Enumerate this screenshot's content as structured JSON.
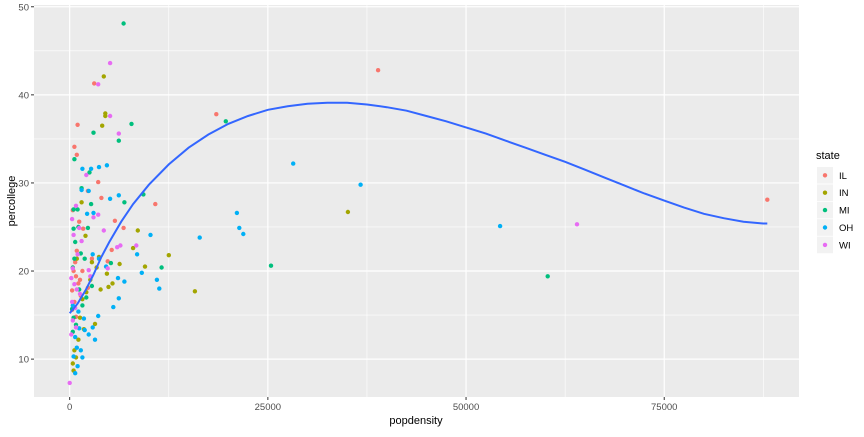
{
  "chart_data": {
    "type": "scatter",
    "title": "",
    "xlabel": "popdensity",
    "ylabel": "percollege",
    "xlim": [
      -4500,
      92000
    ],
    "ylim": [
      5.7,
      50.2
    ],
    "x_ticks": [
      0,
      25000,
      50000,
      75000
    ],
    "x_tick_labels": [
      "0",
      "25000",
      "50000",
      "75000"
    ],
    "y_ticks": [
      10,
      20,
      30,
      40,
      50
    ],
    "y_tick_labels": [
      "10",
      "20",
      "30",
      "40",
      "50"
    ],
    "grid": true,
    "legend": {
      "title": "state",
      "position": "right",
      "entries": [
        {
          "label": "IL",
          "color": "#F8766D"
        },
        {
          "label": "IN",
          "color": "#A3A500"
        },
        {
          "label": "MI",
          "color": "#00BF7D"
        },
        {
          "label": "OH",
          "color": "#00B0F6"
        },
        {
          "label": "WI",
          "color": "#E76BF3"
        }
      ]
    },
    "smooth": {
      "name": "loess",
      "color": "#3366FF",
      "x": [
        0,
        1000,
        2000,
        3000,
        4000,
        5000,
        6500,
        8000,
        10000,
        12500,
        15000,
        17500,
        20000,
        22500,
        25000,
        27500,
        30000,
        32500,
        35000,
        37500,
        40000,
        42500,
        45000,
        47500,
        50000,
        52500,
        55000,
        57500,
        60000,
        62500,
        65000,
        67500,
        70000,
        72500,
        75000,
        77500,
        80000,
        82500,
        85000,
        87500,
        88000
      ],
      "y": [
        15.2,
        16.3,
        17.8,
        19.6,
        21.6,
        23.3,
        25.6,
        27.6,
        29.8,
        32.1,
        34.0,
        35.5,
        36.7,
        37.6,
        38.3,
        38.7,
        39.0,
        39.1,
        39.1,
        38.9,
        38.6,
        38.2,
        37.6,
        37.0,
        36.3,
        35.6,
        34.8,
        34.0,
        33.2,
        32.4,
        31.5,
        30.6,
        29.7,
        28.8,
        28.0,
        27.2,
        26.5,
        26.0,
        25.6,
        25.4,
        25.4
      ]
    },
    "series": [
      {
        "name": "IL",
        "color": "#F8766D",
        "points": [
          [
            1000,
            36.6
          ],
          [
            600,
            34.1
          ],
          [
            900,
            33.2
          ],
          [
            400,
            26.9
          ],
          [
            1200,
            25.6
          ],
          [
            900,
            22.3
          ],
          [
            700,
            21.0
          ],
          [
            500,
            20.0
          ],
          [
            800,
            19.4
          ],
          [
            1100,
            18.6
          ],
          [
            300,
            17.8
          ],
          [
            1600,
            20.0
          ],
          [
            2300,
            29.1
          ],
          [
            3100,
            41.3
          ],
          [
            1700,
            24.8
          ],
          [
            2800,
            21.4
          ],
          [
            3600,
            30.1
          ],
          [
            4000,
            28.3
          ],
          [
            4800,
            21.1
          ],
          [
            5300,
            22.4
          ],
          [
            2300,
            18.1
          ],
          [
            5700,
            25.7
          ],
          [
            6800,
            24.9
          ],
          [
            10800,
            27.6
          ],
          [
            18500,
            37.8
          ],
          [
            38900,
            42.8
          ],
          [
            88000,
            28.1
          ],
          [
            1400,
            17.2
          ],
          [
            600,
            16.5
          ],
          [
            300,
            15.6
          ],
          [
            800,
            14.8
          ],
          [
            1300,
            19.0
          ]
        ]
      },
      {
        "name": "IN",
        "color": "#A3A500",
        "points": [
          [
            4300,
            42.1
          ],
          [
            4500,
            37.9
          ],
          [
            4100,
            36.5
          ],
          [
            4500,
            37.6
          ],
          [
            1500,
            27.8
          ],
          [
            900,
            21.4
          ],
          [
            2000,
            24.0
          ],
          [
            2800,
            21.0
          ],
          [
            3400,
            20.4
          ],
          [
            3700,
            21.6
          ],
          [
            4700,
            19.7
          ],
          [
            4900,
            18.2
          ],
          [
            6300,
            20.8
          ],
          [
            8000,
            22.6
          ],
          [
            8600,
            24.6
          ],
          [
            9500,
            20.5
          ],
          [
            12500,
            21.8
          ],
          [
            15800,
            17.7
          ],
          [
            35100,
            26.7
          ],
          [
            1300,
            14.7
          ],
          [
            1800,
            13.4
          ],
          [
            1100,
            12.2
          ],
          [
            600,
            11.0
          ],
          [
            800,
            10.2
          ],
          [
            400,
            9.5
          ],
          [
            500,
            8.7
          ],
          [
            2600,
            19.0
          ],
          [
            3200,
            14.0
          ],
          [
            1600,
            16.8
          ],
          [
            2100,
            17.6
          ],
          [
            3900,
            17.9
          ],
          [
            5400,
            18.6
          ]
        ]
      },
      {
        "name": "MI",
        "color": "#00BF7D",
        "points": [
          [
            6800,
            48.1
          ],
          [
            3000,
            35.7
          ],
          [
            6200,
            34.8
          ],
          [
            7800,
            36.7
          ],
          [
            19700,
            37.0
          ],
          [
            600,
            32.7
          ],
          [
            2500,
            31.2
          ],
          [
            1500,
            29.4
          ],
          [
            2700,
            27.6
          ],
          [
            1000,
            27.0
          ],
          [
            500,
            27.0
          ],
          [
            6900,
            27.8
          ],
          [
            9300,
            28.7
          ],
          [
            1100,
            25.0
          ],
          [
            2300,
            24.9
          ],
          [
            500,
            24.8
          ],
          [
            700,
            23.3
          ],
          [
            1400,
            22.0
          ],
          [
            1900,
            21.4
          ],
          [
            600,
            21.4
          ],
          [
            400,
            20.4
          ],
          [
            5200,
            20.9
          ],
          [
            11600,
            20.4
          ],
          [
            25400,
            20.6
          ],
          [
            60300,
            19.4
          ],
          [
            1200,
            17.9
          ],
          [
            2100,
            17.0
          ],
          [
            300,
            15.7
          ],
          [
            500,
            14.7
          ],
          [
            800,
            13.9
          ],
          [
            400,
            13.1
          ],
          [
            1600,
            16.1
          ],
          [
            2800,
            18.3
          ]
        ]
      },
      {
        "name": "OH",
        "color": "#00B0F6",
        "points": [
          [
            3700,
            31.8
          ],
          [
            2400,
            29.1
          ],
          [
            1600,
            31.6
          ],
          [
            2700,
            31.6
          ],
          [
            4700,
            32.0
          ],
          [
            1500,
            29.2
          ],
          [
            2200,
            26.5
          ],
          [
            3000,
            26.6
          ],
          [
            5100,
            28.2
          ],
          [
            6200,
            28.6
          ],
          [
            28200,
            32.2
          ],
          [
            36700,
            29.8
          ],
          [
            54300,
            25.1
          ],
          [
            21100,
            26.6
          ],
          [
            21400,
            24.9
          ],
          [
            21900,
            24.2
          ],
          [
            16400,
            23.8
          ],
          [
            10200,
            24.1
          ],
          [
            2900,
            21.9
          ],
          [
            3700,
            21.4
          ],
          [
            4600,
            20.5
          ],
          [
            6100,
            19.2
          ],
          [
            6900,
            18.8
          ],
          [
            8500,
            21.9
          ],
          [
            9100,
            19.8
          ],
          [
            11000,
            19.0
          ],
          [
            11300,
            18.0
          ],
          [
            6200,
            16.9
          ],
          [
            5500,
            15.9
          ],
          [
            3600,
            14.9
          ],
          [
            1800,
            14.6
          ],
          [
            1200,
            13.5
          ],
          [
            700,
            12.5
          ],
          [
            900,
            11.3
          ],
          [
            1400,
            11.0
          ],
          [
            500,
            10.3
          ],
          [
            1000,
            9.2
          ],
          [
            700,
            8.4
          ],
          [
            1600,
            10.2
          ],
          [
            2400,
            12.8
          ],
          [
            2900,
            13.6
          ],
          [
            3200,
            12.2
          ],
          [
            1900,
            13.3
          ],
          [
            400,
            16.1
          ],
          [
            1100,
            15.4
          ]
        ]
      },
      {
        "name": "WI",
        "color": "#E76BF3",
        "points": [
          [
            5100,
            43.6
          ],
          [
            5100,
            37.6
          ],
          [
            3600,
            41.2
          ],
          [
            6200,
            35.6
          ],
          [
            2100,
            30.9
          ],
          [
            3600,
            26.4
          ],
          [
            3000,
            26.1
          ],
          [
            300,
            25.9
          ],
          [
            800,
            27.4
          ],
          [
            1200,
            24.9
          ],
          [
            500,
            24.1
          ],
          [
            1500,
            23.4
          ],
          [
            4300,
            24.6
          ],
          [
            6000,
            22.7
          ],
          [
            6400,
            22.9
          ],
          [
            8400,
            22.9
          ],
          [
            2400,
            20.1
          ],
          [
            1000,
            21.9
          ],
          [
            400,
            20.3
          ],
          [
            200,
            19.2
          ],
          [
            600,
            18.5
          ],
          [
            900,
            17.9
          ],
          [
            1300,
            17.4
          ],
          [
            300,
            16.5
          ],
          [
            700,
            15.8
          ],
          [
            400,
            14.4
          ],
          [
            800,
            13.6
          ],
          [
            200,
            12.8
          ],
          [
            64000,
            25.3
          ],
          [
            0,
            7.3
          ],
          [
            4800,
            20.3
          ],
          [
            2600,
            19.4
          ]
        ]
      }
    ]
  }
}
